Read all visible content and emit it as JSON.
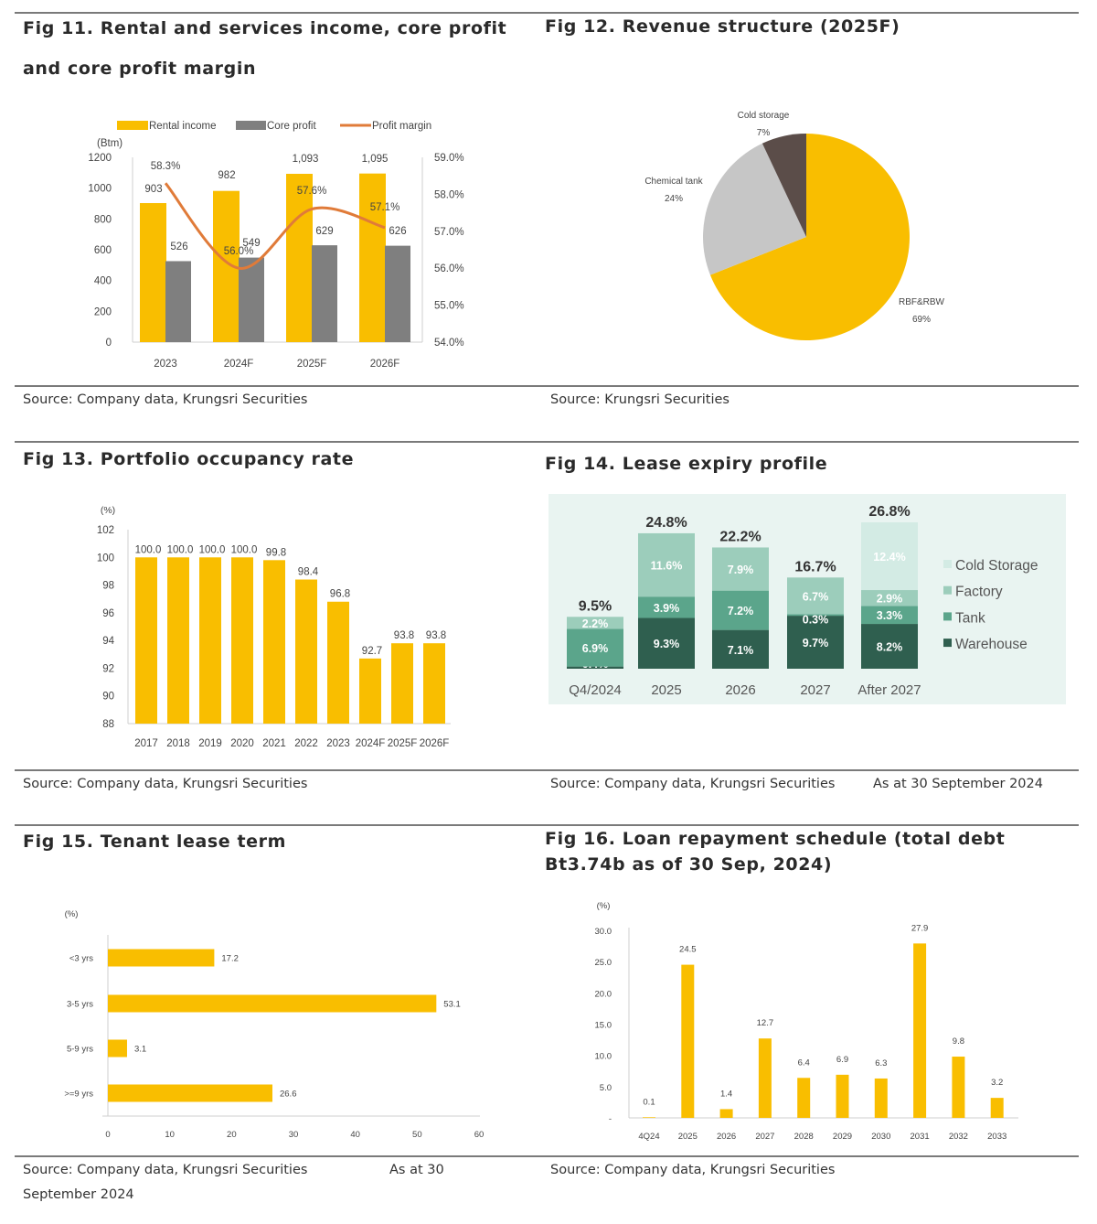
{
  "fig11": {
    "title_line1": "Fig 11. Rental and services income, core profit",
    "title_line2": "and core profit margin",
    "source": "Source: Company data, Krungsri Securities",
    "chart_data": {
      "type": "bar+line",
      "categories": [
        "2023",
        "2024F",
        "2025F",
        "2026F"
      ],
      "series": [
        {
          "name": "Rental income",
          "values": [
            903,
            982,
            1093,
            1095
          ],
          "labels": [
            "903",
            "982",
            "1,093",
            "1,095"
          ],
          "color": "#f9be00",
          "axis": "left"
        },
        {
          "name": "Core profit",
          "values": [
            526,
            549,
            629,
            626
          ],
          "labels": [
            "526",
            "549",
            "629",
            "626"
          ],
          "color": "#7f7f7f",
          "axis": "left"
        },
        {
          "name": "Profit margin",
          "values": [
            58.3,
            56.0,
            57.6,
            57.1
          ],
          "labels": [
            "58.3%",
            "56.0%",
            "57.6%",
            "57.1%"
          ],
          "color": "#e07b39",
          "axis": "right",
          "type": "line"
        }
      ],
      "ylabel": "(Btm)",
      "ylim": [
        0,
        1200
      ],
      "yticks": [
        "0",
        "200",
        "400",
        "600",
        "800",
        "1000",
        "1200"
      ],
      "y2lim": [
        54,
        59
      ],
      "y2ticks": [
        "54.0%",
        "55.0%",
        "56.0%",
        "57.0%",
        "58.0%",
        "59.0%"
      ],
      "legend": "top"
    }
  },
  "fig12": {
    "title": "Fig 12. Revenue structure (2025F)",
    "source": "Source: Krungsri Securities",
    "chart_data": {
      "type": "pie",
      "slices": [
        {
          "name": "RBF&RBW",
          "value": 69,
          "label": "69%",
          "color": "#f9be00"
        },
        {
          "name": "Chemical tank",
          "value": 24,
          "label": "24%",
          "color": "#c6c6c6"
        },
        {
          "name": "Cold storage",
          "value": 7,
          "label": "7%",
          "color": "#5b4d49"
        }
      ]
    }
  },
  "fig13": {
    "title": "Fig 13. Portfolio occupancy rate",
    "source": "Source: Company data, Krungsri Securities",
    "chart_data": {
      "type": "bar",
      "categories": [
        "2017",
        "2018",
        "2019",
        "2020",
        "2021",
        "2022",
        "2023",
        "2024F",
        "2025F",
        "2026F"
      ],
      "values": [
        100.0,
        100.0,
        100.0,
        100.0,
        99.8,
        98.4,
        96.8,
        92.7,
        93.8,
        93.8
      ],
      "labels": [
        "100.0",
        "100.0",
        "100.0",
        "100.0",
        "99.8",
        "98.4",
        "96.8",
        "92.7",
        "93.8",
        "93.8"
      ],
      "ylabel": "(%)",
      "ylim": [
        88,
        102
      ],
      "yticks": [
        "88",
        "90",
        "92",
        "94",
        "96",
        "98",
        "100",
        "102"
      ],
      "color": "#f9be00"
    }
  },
  "fig14": {
    "title": "Fig 14. Lease expiry profile",
    "source": "Source: Company data, Krungsri Securities",
    "note": "As at 30 September 2024",
    "chart_data": {
      "type": "stacked-bar",
      "categories": [
        "Q4/2024",
        "2025",
        "2026",
        "2027",
        "After 2027"
      ],
      "totals": [
        "9.5%",
        "24.8%",
        "22.2%",
        "16.7%",
        "26.8%"
      ],
      "series": [
        {
          "name": "Warehouse",
          "color": "#2f5f4f",
          "values": [
            0.4,
            9.3,
            7.1,
            9.7,
            8.2
          ]
        },
        {
          "name": "Tank",
          "color": "#5ba58b",
          "values": [
            6.9,
            3.9,
            7.2,
            0.3,
            3.3
          ]
        },
        {
          "name": "Factory",
          "color": "#9ccdbb",
          "values": [
            2.2,
            11.6,
            7.9,
            6.7,
            2.9
          ]
        },
        {
          "name": "Cold Storage",
          "color": "#d3ebe4",
          "values": [
            0,
            0,
            0,
            0,
            12.4
          ]
        }
      ],
      "legend_order": [
        "Cold Storage",
        "Factory",
        "Tank",
        "Warehouse"
      ],
      "legend": "right"
    }
  },
  "fig15": {
    "title": "Fig 15. Tenant lease term",
    "source": "Source: Company data, Krungsri Securities",
    "note_part1": "As at 30",
    "note_part2": "September 2024",
    "chart_data": {
      "type": "horizontal-bar",
      "categories": [
        "<3 yrs",
        "3-5 yrs",
        "5-9 yrs",
        ">=9 yrs"
      ],
      "values": [
        17.2,
        53.1,
        3.1,
        26.6
      ],
      "labels": [
        "17.2",
        "53.1",
        "3.1",
        "26.6"
      ],
      "ylabel": "(%)",
      "xlim": [
        0,
        60
      ],
      "xticks": [
        "0",
        "10",
        "20",
        "30",
        "40",
        "50",
        "60"
      ],
      "color": "#f9be00"
    }
  },
  "fig16": {
    "title_line1": "Fig 16. Loan repayment schedule (total debt",
    "title_line2": "Bt3.74b as of 30 Sep, 2024)",
    "source": "Source: Company data, Krungsri Securities",
    "chart_data": {
      "type": "bar",
      "categories": [
        "4Q24",
        "2025",
        "2026",
        "2027",
        "2028",
        "2029",
        "2030",
        "2031",
        "2032",
        "2033"
      ],
      "values": [
        0.1,
        24.5,
        1.4,
        12.7,
        6.4,
        6.9,
        6.3,
        27.9,
        9.8,
        3.2
      ],
      "labels": [
        "0.1",
        "24.5",
        "1.4",
        "12.7",
        "6.4",
        "6.9",
        "6.3",
        "27.9",
        "9.8",
        "3.2"
      ],
      "ylabel": "(%)",
      "ylim": [
        0,
        30
      ],
      "yticks": [
        "-",
        "5.0",
        "10.0",
        "15.0",
        "20.0",
        "25.0",
        "30.0"
      ],
      "color": "#f9be00"
    }
  }
}
